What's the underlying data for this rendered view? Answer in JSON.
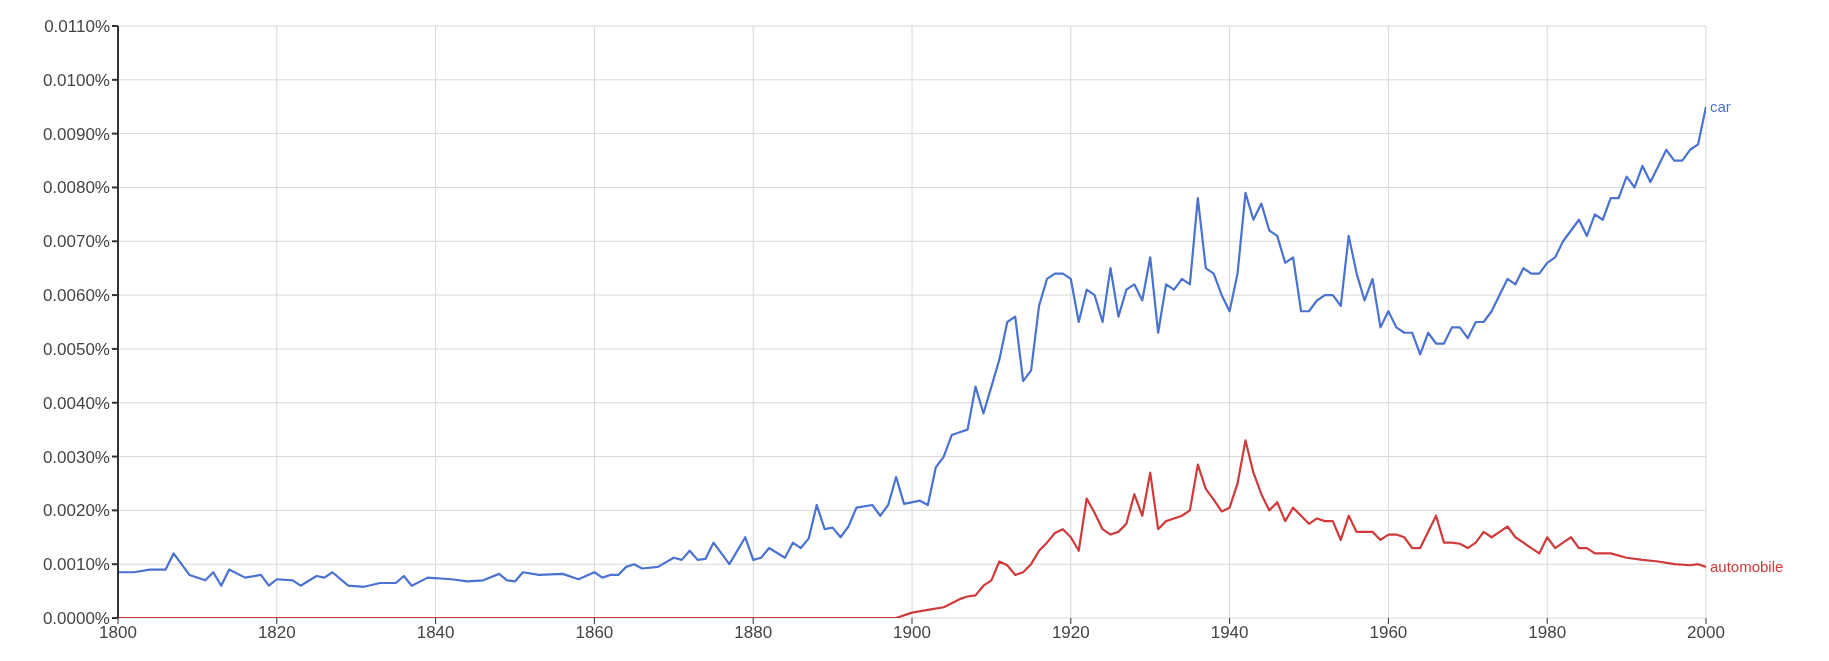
{
  "chart_data": {
    "type": "line",
    "xlim": [
      1800,
      2000
    ],
    "xticks": [
      1800,
      1820,
      1840,
      1860,
      1880,
      1900,
      1920,
      1940,
      1960,
      1980,
      2000
    ],
    "ylim": [
      0,
      0.011
    ],
    "yticks": [
      {
        "value": 0,
        "label": "0.0000%"
      },
      {
        "value": 0.001,
        "label": "0.0010%"
      },
      {
        "value": 0.002,
        "label": "0.0020%"
      },
      {
        "value": 0.003,
        "label": "0.0030%"
      },
      {
        "value": 0.004,
        "label": "0.0040%"
      },
      {
        "value": 0.005,
        "label": "0.0050%"
      },
      {
        "value": 0.006,
        "label": "0.0060%"
      },
      {
        "value": 0.007,
        "label": "0.0070%"
      },
      {
        "value": 0.008,
        "label": "0.0080%"
      },
      {
        "value": 0.009,
        "label": "0.0090%"
      },
      {
        "value": 0.01,
        "label": "0.0100%"
      },
      {
        "value": 0.011,
        "label": "0.0110%"
      }
    ],
    "grid": true,
    "marker": "none",
    "line_style": "solid",
    "series": [
      {
        "name": "car",
        "color": "#4a72d0",
        "x": [
          1800,
          1802,
          1804,
          1806,
          1807,
          1809,
          1811,
          1812,
          1813,
          1814,
          1816,
          1818,
          1819,
          1820,
          1822,
          1823,
          1825,
          1826,
          1827,
          1829,
          1831,
          1833,
          1835,
          1836,
          1837,
          1839,
          1842,
          1844,
          1846,
          1848,
          1849,
          1850,
          1851,
          1853,
          1856,
          1858,
          1860,
          1861,
          1862,
          1863,
          1864,
          1865,
          1866,
          1868,
          1870,
          1871,
          1872,
          1873,
          1874,
          1875,
          1877,
          1879,
          1880,
          1881,
          1882,
          1884,
          1885,
          1886,
          1887,
          1888,
          1889,
          1890,
          1891,
          1892,
          1893,
          1895,
          1896,
          1897,
          1898,
          1899,
          1901,
          1902,
          1903,
          1904,
          1905,
          1906,
          1907,
          1908,
          1909,
          1910,
          1911,
          1912,
          1913,
          1914,
          1915,
          1916,
          1917,
          1918,
          1919,
          1920,
          1921,
          1922,
          1923,
          1924,
          1925,
          1926,
          1927,
          1928,
          1929,
          1930,
          1931,
          1932,
          1933,
          1934,
          1935,
          1936,
          1937,
          1938,
          1939,
          1940,
          1941,
          1942,
          1943,
          1944,
          1945,
          1946,
          1947,
          1948,
          1949,
          1950,
          1951,
          1952,
          1953,
          1954,
          1955,
          1956,
          1957,
          1958,
          1959,
          1960,
          1961,
          1962,
          1963,
          1964,
          1965,
          1966,
          1967,
          1968,
          1969,
          1970,
          1971,
          1972,
          1973,
          1974,
          1975,
          1976,
          1977,
          1978,
          1979,
          1980,
          1981,
          1982,
          1983,
          1984,
          1985,
          1986,
          1987,
          1988,
          1989,
          1990,
          1991,
          1992,
          1993,
          1994,
          1995,
          1996,
          1997,
          1998,
          1999,
          2000
        ],
        "values": [
          0.00085,
          0.00085,
          0.0009,
          0.0009,
          0.0012,
          0.0008,
          0.0007,
          0.00085,
          0.0006,
          0.0009,
          0.00075,
          0.0008,
          0.0006,
          0.00072,
          0.0007,
          0.0006,
          0.00078,
          0.00075,
          0.00085,
          0.0006,
          0.00058,
          0.00065,
          0.00065,
          0.00078,
          0.0006,
          0.00075,
          0.00072,
          0.00068,
          0.0007,
          0.00082,
          0.0007,
          0.00068,
          0.00085,
          0.0008,
          0.00082,
          0.00072,
          0.00085,
          0.00075,
          0.0008,
          0.0008,
          0.00095,
          0.001,
          0.00092,
          0.00095,
          0.00112,
          0.00108,
          0.00125,
          0.00108,
          0.0011,
          0.0014,
          0.001,
          0.0015,
          0.00108,
          0.00112,
          0.0013,
          0.00112,
          0.0014,
          0.0013,
          0.00148,
          0.0021,
          0.00165,
          0.00168,
          0.0015,
          0.0017,
          0.00205,
          0.0021,
          0.0019,
          0.0021,
          0.00262,
          0.00212,
          0.00218,
          0.0021,
          0.0028,
          0.003,
          0.0034,
          0.00345,
          0.0035,
          0.0043,
          0.0038,
          0.0043,
          0.0048,
          0.0055,
          0.0056,
          0.0044,
          0.0046,
          0.0058,
          0.0063,
          0.0064,
          0.0064,
          0.0063,
          0.0055,
          0.0061,
          0.006,
          0.0055,
          0.0065,
          0.0056,
          0.0061,
          0.0062,
          0.0059,
          0.0067,
          0.0053,
          0.0062,
          0.0061,
          0.0063,
          0.0062,
          0.0078,
          0.0065,
          0.0064,
          0.006,
          0.0057,
          0.0064,
          0.0079,
          0.0074,
          0.0077,
          0.0072,
          0.0071,
          0.0066,
          0.0067,
          0.0057,
          0.0057,
          0.0059,
          0.006,
          0.006,
          0.0058,
          0.0071,
          0.0064,
          0.0059,
          0.0063,
          0.0054,
          0.0057,
          0.0054,
          0.0053,
          0.0053,
          0.0049,
          0.0053,
          0.0051,
          0.0051,
          0.0054,
          0.0054,
          0.0052,
          0.0055,
          0.0055,
          0.0057,
          0.006,
          0.0063,
          0.0062,
          0.0065,
          0.0064,
          0.0064,
          0.0066,
          0.0067,
          0.007,
          0.0072,
          0.0074,
          0.0071,
          0.0075,
          0.0074,
          0.0078,
          0.0078,
          0.0082,
          0.008,
          0.0084,
          0.0081,
          0.0084,
          0.0087,
          0.0085,
          0.0085,
          0.0087,
          0.0088,
          0.0095
        ]
      },
      {
        "name": "automobile",
        "color": "#d03a3a",
        "x": [
          1800,
          1893,
          1898,
          1900,
          1902,
          1904,
          1906,
          1907,
          1908,
          1909,
          1910,
          1911,
          1912,
          1913,
          1914,
          1915,
          1916,
          1917,
          1918,
          1919,
          1920,
          1921,
          1922,
          1923,
          1924,
          1925,
          1926,
          1927,
          1928,
          1929,
          1930,
          1931,
          1932,
          1933,
          1934,
          1935,
          1936,
          1937,
          1938,
          1939,
          1940,
          1941,
          1942,
          1943,
          1944,
          1945,
          1946,
          1947,
          1948,
          1949,
          1950,
          1951,
          1952,
          1953,
          1954,
          1955,
          1956,
          1957,
          1958,
          1959,
          1960,
          1961,
          1962,
          1963,
          1964,
          1965,
          1966,
          1967,
          1968,
          1969,
          1970,
          1971,
          1972,
          1973,
          1974,
          1975,
          1976,
          1977,
          1978,
          1979,
          1980,
          1981,
          1982,
          1983,
          1984,
          1985,
          1986,
          1988,
          1990,
          1992,
          1994,
          1996,
          1998,
          1999,
          2000
        ],
        "values": [
          0,
          0,
          0,
          0.0001,
          0.00015,
          0.0002,
          0.00035,
          0.0004,
          0.00042,
          0.0006,
          0.0007,
          0.00105,
          0.00098,
          0.0008,
          0.00085,
          0.001,
          0.00125,
          0.0014,
          0.00158,
          0.00165,
          0.0015,
          0.00125,
          0.00222,
          0.00195,
          0.00165,
          0.00155,
          0.0016,
          0.00175,
          0.0023,
          0.0019,
          0.0027,
          0.00165,
          0.0018,
          0.00185,
          0.0019,
          0.002,
          0.00285,
          0.0024,
          0.0022,
          0.00198,
          0.00205,
          0.0025,
          0.0033,
          0.0027,
          0.0023,
          0.002,
          0.00215,
          0.0018,
          0.00205,
          0.0019,
          0.00175,
          0.00185,
          0.0018,
          0.0018,
          0.00145,
          0.0019,
          0.0016,
          0.0016,
          0.0016,
          0.00145,
          0.00155,
          0.00155,
          0.0015,
          0.0013,
          0.0013,
          0.0016,
          0.0019,
          0.0014,
          0.0014,
          0.00138,
          0.0013,
          0.0014,
          0.0016,
          0.0015,
          0.0016,
          0.0017,
          0.0015,
          0.0014,
          0.0013,
          0.0012,
          0.0015,
          0.0013,
          0.0014,
          0.0015,
          0.0013,
          0.0013,
          0.0012,
          0.0012,
          0.00112,
          0.00108,
          0.00105,
          0.001,
          0.00098,
          0.001,
          0.00095
        ]
      }
    ]
  }
}
